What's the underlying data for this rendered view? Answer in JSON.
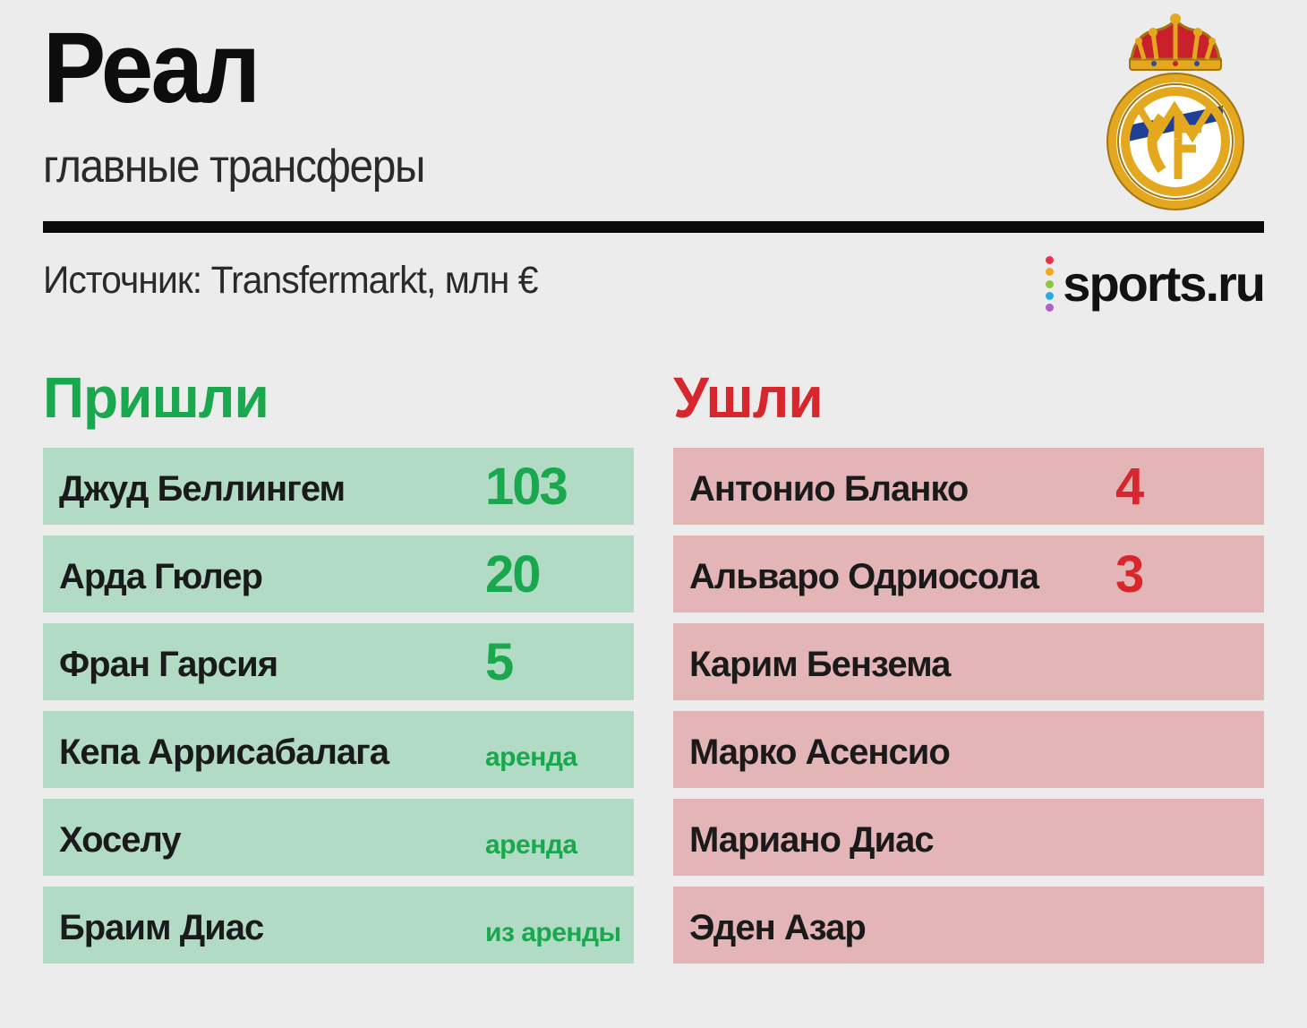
{
  "header": {
    "title": "Реал",
    "subtitle": "главные трансферы",
    "source": "Источник: Transfermarkt, млн €"
  },
  "brand": {
    "name": "sports.ru",
    "dot_colors": [
      "#e8334a",
      "#f5a623",
      "#8dc63f",
      "#29abe2",
      "#b05fc7"
    ]
  },
  "logo": {
    "icon": "real-madrid-crest-icon",
    "letters": "MCF"
  },
  "colors": {
    "incoming_accent": "#19a84d",
    "outgoing_accent": "#d7262d",
    "incoming_row": "#b1dbc5",
    "outgoing_row": "#e4b5b6"
  },
  "incoming": {
    "title": "Пришли",
    "players": [
      {
        "name": "Джуд Беллингем",
        "fee": "103"
      },
      {
        "name": "Арда Гюлер",
        "fee": "20"
      },
      {
        "name": "Фран Гарсия",
        "fee": "5"
      },
      {
        "name": "Кепа Аррисабалага",
        "fee": "аренда"
      },
      {
        "name": "Хоселу",
        "fee": "аренда"
      },
      {
        "name": "Браим Диас",
        "fee": "из аренды"
      }
    ]
  },
  "outgoing": {
    "title": "Ушли",
    "players": [
      {
        "name": "Антонио Бланко",
        "fee": "4"
      },
      {
        "name": "Альваро Одриосола",
        "fee": "3"
      },
      {
        "name": "Карим Бензема",
        "fee": ""
      },
      {
        "name": "Марко Асенсио",
        "fee": ""
      },
      {
        "name": "Мариано Диас",
        "fee": ""
      },
      {
        "name": "Эден Азар",
        "fee": ""
      }
    ]
  }
}
